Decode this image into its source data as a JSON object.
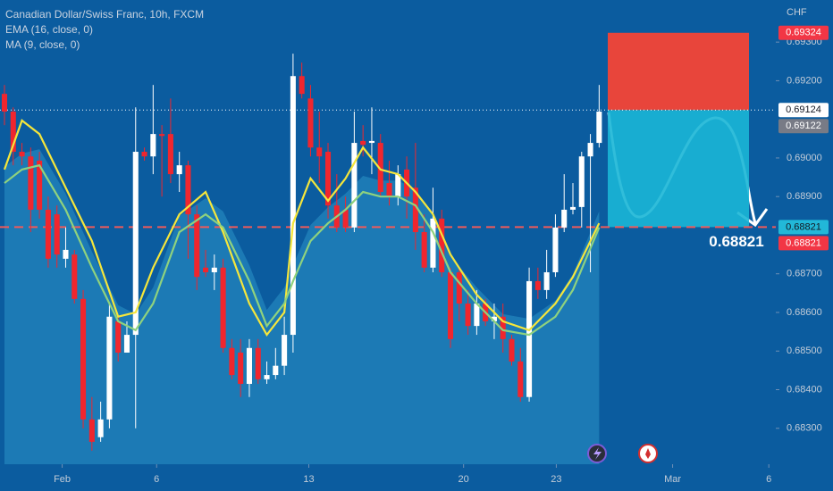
{
  "chart_data": {
    "type": "candlestick",
    "title": "Canadian Dollar/Swiss Franc, 10h, FXCM",
    "indicators": [
      "EMA (16, close, 0)",
      "MA (9, close, 0)"
    ],
    "currency": "CHF",
    "xlim": [
      -0.51,
      88.2
    ],
    "ylim": [
      0.68207,
      0.69409
    ],
    "xticks": [
      {
        "value": 6.6,
        "label": "Feb"
      },
      {
        "value": 17.4,
        "label": "6"
      },
      {
        "value": 34.8,
        "label": "13"
      },
      {
        "value": 52.5,
        "label": "20"
      },
      {
        "value": 63.1,
        "label": "23"
      },
      {
        "value": 76.4,
        "label": "Mar"
      },
      {
        "value": 87.4,
        "label": "6"
      }
    ],
    "yticks": [
      {
        "value": 0.693,
        "label": "0.69300"
      },
      {
        "value": 0.692,
        "label": "0.69200"
      },
      {
        "value": 0.69,
        "label": "0.69000"
      },
      {
        "value": 0.689,
        "label": "0.68900"
      },
      {
        "value": 0.687,
        "label": "0.68700"
      },
      {
        "value": 0.686,
        "label": "0.68600"
      },
      {
        "value": 0.685,
        "label": "0.68500"
      },
      {
        "value": 0.684,
        "label": "0.68400"
      },
      {
        "value": 0.683,
        "label": "0.68300"
      }
    ],
    "up_color": "#ffffff",
    "down_color": "#f0262e",
    "open": [
      0.69166,
      0.6912,
      0.69016,
      0.69004,
      0.68993,
      0.68866,
      0.68854,
      0.68739,
      0.6875,
      0.68635,
      0.68323,
      0.68277,
      0.68323,
      0.68577,
      0.68496,
      0.68542,
      0.69016,
      0.69004,
      0.69062,
      0.69062,
      0.68958,
      0.68981,
      0.68854,
      0.68716,
      0.68704,
      0.68716,
      0.68508,
      0.68496,
      0.68415,
      0.68508,
      0.68427,
      0.68438,
      0.68462,
      0.68542,
      0.69212,
      0.69154,
      0.69027,
      0.69016,
      0.68877,
      0.68866,
      0.6882,
      0.69044,
      0.69039,
      0.69039,
      0.68935,
      0.689,
      0.6897,
      0.68923,
      0.68808,
      0.68716,
      0.68843,
      0.68704,
      0.68704,
      0.68623,
      0.68565,
      0.68623,
      0.68577,
      0.68589,
      0.68531,
      0.68473,
      0.68381,
      0.68681,
      0.68658,
      0.68704,
      0.6882,
      0.68866,
      0.68873,
      0.69004,
      0.69039
    ],
    "high": [
      0.69189,
      0.69131,
      0.69039,
      0.69027,
      0.69016,
      0.689,
      0.68877,
      0.6882,
      0.68762,
      0.68658,
      0.68381,
      0.68369,
      0.68623,
      0.68589,
      0.68577,
      0.69131,
      0.69027,
      0.69189,
      0.69085,
      0.69154,
      0.69016,
      0.68993,
      0.68877,
      0.68762,
      0.6875,
      0.68739,
      0.68531,
      0.68531,
      0.68531,
      0.68531,
      0.68473,
      0.68508,
      0.68589,
      0.6927,
      0.69247,
      0.69189,
      0.6912,
      0.69039,
      0.68958,
      0.689,
      0.6912,
      0.69085,
      0.69131,
      0.69062,
      0.68993,
      0.68981,
      0.69004,
      0.69039,
      0.68854,
      0.68923,
      0.68866,
      0.68716,
      0.68716,
      0.68658,
      0.68658,
      0.68635,
      0.68623,
      0.68623,
      0.68542,
      0.68508,
      0.68716,
      0.68716,
      0.68762,
      0.68854,
      0.68958,
      0.68935,
      0.69016,
      0.69062,
      0.69189
    ],
    "low": [
      0.69085,
      0.68981,
      0.68981,
      0.68808,
      0.68843,
      0.68716,
      0.68716,
      0.68716,
      0.68623,
      0.683,
      0.68242,
      0.68265,
      0.683,
      0.68473,
      0.68496,
      0.683,
      0.68993,
      0.68958,
      0.689,
      0.68935,
      0.68912,
      0.68739,
      0.68658,
      0.68692,
      0.68658,
      0.68496,
      0.68427,
      0.68381,
      0.68381,
      0.68415,
      0.68415,
      0.68427,
      0.68438,
      0.68496,
      0.69154,
      0.69004,
      0.68935,
      0.68843,
      0.68808,
      0.68808,
      0.68808,
      0.69004,
      0.68958,
      0.689,
      0.68877,
      0.68877,
      0.68843,
      0.68762,
      0.68704,
      0.68704,
      0.68692,
      0.68508,
      0.68577,
      0.68542,
      0.68542,
      0.68565,
      0.68531,
      0.68496,
      0.68462,
      0.68369,
      0.68369,
      0.68635,
      0.68635,
      0.68692,
      0.68808,
      0.68854,
      0.6882,
      0.68704,
      0.69027
    ],
    "close": [
      0.6912,
      0.69016,
      0.69004,
      0.68866,
      0.68866,
      0.68739,
      0.6875,
      0.68762,
      0.68635,
      0.68323,
      0.68265,
      0.68323,
      0.68589,
      0.68496,
      0.68542,
      0.69016,
      0.69004,
      0.69062,
      0.69057,
      0.68958,
      0.68981,
      0.68854,
      0.68692,
      0.68704,
      0.68716,
      0.68508,
      0.68438,
      0.68415,
      0.68508,
      0.68427,
      0.68438,
      0.68462,
      0.68542,
      0.69212,
      0.69166,
      0.69027,
      0.69004,
      0.68877,
      0.6882,
      0.6882,
      0.69039,
      0.69034,
      0.69044,
      0.68912,
      0.689,
      0.68958,
      0.689,
      0.68808,
      0.68716,
      0.68843,
      0.68704,
      0.68531,
      0.68623,
      0.68565,
      0.68623,
      0.68577,
      0.68589,
      0.68531,
      0.68473,
      0.68381,
      0.68681,
      0.68658,
      0.68704,
      0.6882,
      0.68866,
      0.68873,
      0.69004,
      0.69039,
      0.6912
    ],
    "series": [
      {
        "name": "EMA (16, close, 0)",
        "color": "#f5e63b",
        "x": [
          0,
          2,
          4,
          7,
          10,
          13,
          15,
          17,
          20,
          23,
          25,
          28,
          30,
          32,
          33,
          35,
          37,
          39,
          41,
          43,
          45,
          47,
          49,
          51,
          54,
          57,
          60,
          63,
          65,
          68
        ],
        "values": [
          0.6897,
          0.69097,
          0.69062,
          0.68923,
          0.68785,
          0.68589,
          0.686,
          0.68716,
          0.68854,
          0.68912,
          0.68808,
          0.68623,
          0.68542,
          0.686,
          0.68831,
          0.68947,
          0.68889,
          0.68947,
          0.69027,
          0.6897,
          0.68958,
          0.68912,
          0.68854,
          0.6875,
          0.68646,
          0.68577,
          0.68554,
          0.68623,
          0.68692,
          0.68831
        ]
      },
      {
        "name": "MA (9, close, 0)",
        "color": "#8fd27e",
        "x": [
          0,
          2,
          4,
          7,
          10,
          13,
          15,
          17,
          20,
          23,
          25,
          28,
          30,
          32,
          33,
          35,
          37,
          39,
          41,
          43,
          45,
          47,
          49,
          51,
          54,
          57,
          60,
          63,
          65,
          68
        ],
        "values": [
          0.68935,
          0.6897,
          0.68981,
          0.68866,
          0.68716,
          0.68577,
          0.68554,
          0.68623,
          0.68808,
          0.68854,
          0.6882,
          0.68681,
          0.68565,
          0.68623,
          0.68681,
          0.68785,
          0.68831,
          0.68866,
          0.68912,
          0.689,
          0.689,
          0.68877,
          0.68808,
          0.68704,
          0.68623,
          0.68554,
          0.68542,
          0.68589,
          0.68658,
          0.6882
        ]
      }
    ],
    "price_labels": [
      {
        "value": 0.69324,
        "color": "#f23645",
        "text_color": "#ffffff"
      },
      {
        "value": 0.69124,
        "color": "#ffffff",
        "text_color": "#131722"
      },
      {
        "value": 0.69122,
        "color": "#787b86",
        "text_color": "#ffffff"
      },
      {
        "value": 0.68821,
        "color": "#22b8d8",
        "text_color": "#131722"
      },
      {
        "value": 0.68821,
        "color": "#f23645",
        "text_color": "#ffffff"
      }
    ],
    "target_text": "0.68821"
  }
}
